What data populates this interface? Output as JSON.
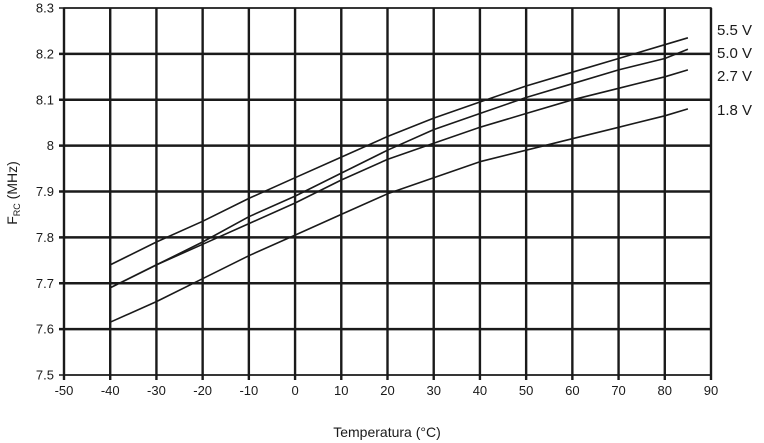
{
  "chart_data": {
    "type": "line",
    "title": "",
    "xlabel": "Temperatura (°C)",
    "ylabel_main": "F",
    "ylabel_sub": "RC",
    "ylabel_unit": " (MHz)",
    "xlim": [
      -50,
      90
    ],
    "ylim": [
      7.5,
      8.3
    ],
    "xticks": [
      -50,
      -40,
      -30,
      -20,
      -10,
      0,
      10,
      20,
      30,
      40,
      50,
      60,
      70,
      80,
      90
    ],
    "xtick_labels": [
      "-50",
      "-40",
      "-30",
      "-20",
      "-10",
      "0",
      "10",
      "20",
      "30",
      "40",
      "50",
      "60",
      "70",
      "80",
      "90"
    ],
    "yticks": [
      7.5,
      7.6,
      7.7,
      7.8,
      7.9,
      8.0,
      8.1,
      8.2,
      8.3
    ],
    "ytick_labels": [
      "7.5",
      "7.6",
      "7.7",
      "7.8",
      "7.9",
      "8",
      "8.1",
      "8.2",
      "8.3"
    ],
    "grid": true,
    "line_color": "#1a1a1a",
    "grid_color": "#1a1a1a",
    "series": [
      {
        "name": "5.5 V",
        "x": [
          -40,
          -30,
          -20,
          -10,
          0,
          10,
          20,
          30,
          40,
          50,
          60,
          70,
          80,
          85
        ],
        "y": [
          7.74,
          7.79,
          7.835,
          7.885,
          7.93,
          7.975,
          8.02,
          8.06,
          8.095,
          8.13,
          8.16,
          8.19,
          8.22,
          8.235
        ]
      },
      {
        "name": "5.0 V",
        "x": [
          -40,
          -30,
          -20,
          -10,
          0,
          10,
          20,
          30,
          40,
          50,
          60,
          70,
          80,
          85
        ],
        "y": [
          7.69,
          7.74,
          7.79,
          7.845,
          7.89,
          7.94,
          7.99,
          8.035,
          8.07,
          8.105,
          8.135,
          8.165,
          8.19,
          8.21
        ]
      },
      {
        "name": "2.7 V",
        "x": [
          -40,
          -30,
          -20,
          -10,
          0,
          10,
          20,
          30,
          40,
          50,
          60,
          70,
          80,
          85
        ],
        "y": [
          7.69,
          7.74,
          7.785,
          7.83,
          7.875,
          7.925,
          7.97,
          8.005,
          8.04,
          8.07,
          8.1,
          8.125,
          8.15,
          8.165
        ]
      },
      {
        "name": "1.8 V",
        "x": [
          -40,
          -30,
          -20,
          -10,
          0,
          10,
          20,
          30,
          40,
          50,
          60,
          70,
          80,
          85
        ],
        "y": [
          7.615,
          7.66,
          7.71,
          7.76,
          7.805,
          7.85,
          7.895,
          7.93,
          7.965,
          7.99,
          8.015,
          8.04,
          8.065,
          8.08
        ]
      }
    ]
  }
}
